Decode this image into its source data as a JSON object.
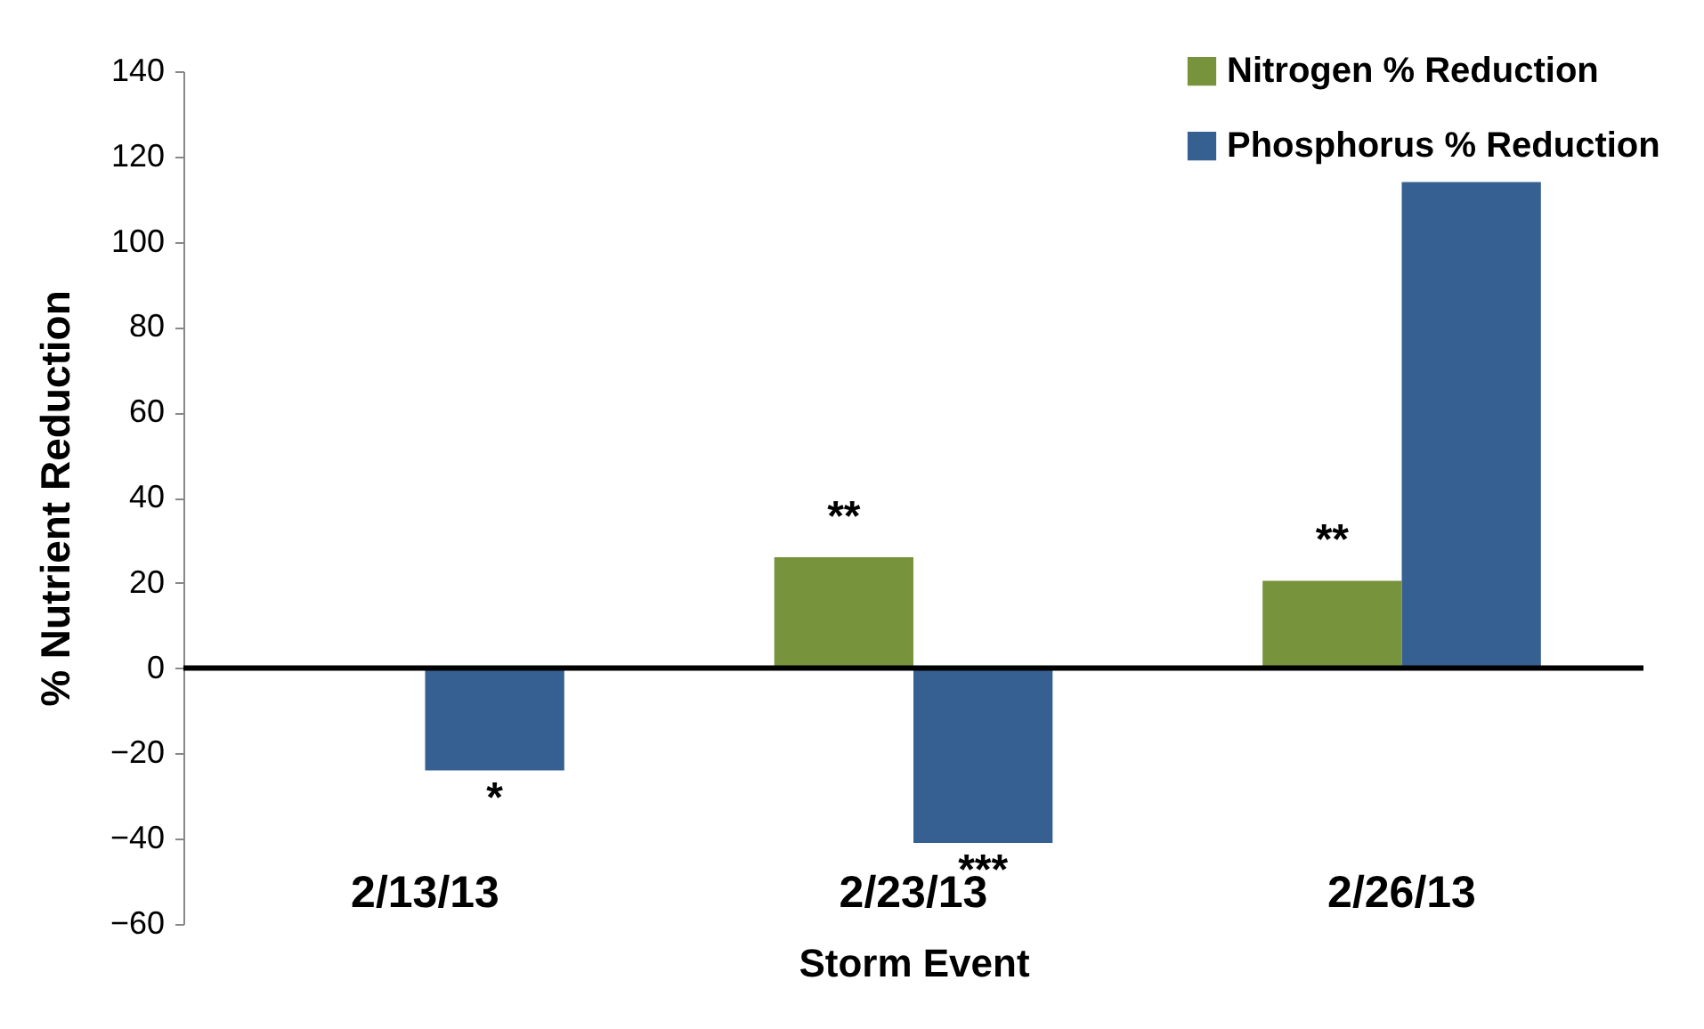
{
  "chart_data": {
    "type": "bar",
    "xlabel": "Storm Event",
    "ylabel": "% Nutrient Reduction",
    "categories": [
      "2/13/13",
      "2/23/13",
      "2/26/13"
    ],
    "series": [
      {
        "name": "Nitrogen % Reduction",
        "color": "#77933c",
        "values": [
          null,
          26,
          20.5
        ]
      },
      {
        "name": "Phosphorus % Reduction",
        "color": "#376092",
        "values": [
          -24,
          -41,
          114
        ]
      }
    ],
    "ylim": [
      -60,
      140
    ],
    "yticks": [
      -60,
      -40,
      -20,
      0,
      20,
      40,
      60,
      80,
      100,
      120,
      140
    ],
    "legend": "top right",
    "ref_lines": [
      {
        "axis": "y",
        "value": 0,
        "color": "#000000"
      }
    ],
    "annotations": [
      {
        "text": "*",
        "x": "2/13/13",
        "y": -24
      },
      {
        "text": "**",
        "x": "2/23/13",
        "y": 26
      },
      {
        "text": "***",
        "x": "2/23/13",
        "y": -41
      },
      {
        "text": "**",
        "x": "2/26/13",
        "y": 20.5
      }
    ]
  }
}
